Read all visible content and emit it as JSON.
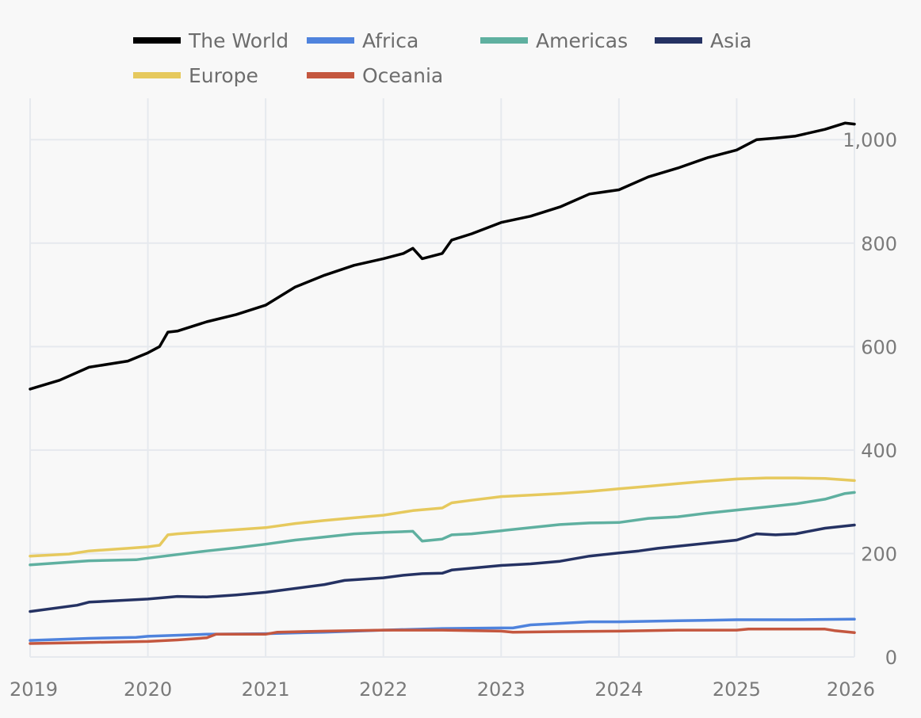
{
  "chart_data": {
    "type": "line",
    "title": "",
    "xlabel": "",
    "ylabel": "",
    "xlim": [
      2019,
      2026
    ],
    "ylim": [
      0,
      1080
    ],
    "y_axis_side": "right",
    "grid": true,
    "legend_position": "top",
    "x_ticks": [
      {
        "value": 2019,
        "label": "2019"
      },
      {
        "value": 2020,
        "label": "2020"
      },
      {
        "value": 2021,
        "label": "2021"
      },
      {
        "value": 2022,
        "label": "2022"
      },
      {
        "value": 2023,
        "label": "2023"
      },
      {
        "value": 2024,
        "label": "2024"
      },
      {
        "value": 2025,
        "label": "2025"
      },
      {
        "value": 2026,
        "label": "2026"
      }
    ],
    "y_ticks": [
      {
        "value": 0,
        "label": "0"
      },
      {
        "value": 200,
        "label": "200"
      },
      {
        "value": 400,
        "label": "400"
      },
      {
        "value": 600,
        "label": "600"
      },
      {
        "value": 800,
        "label": "800"
      },
      {
        "value": 1000,
        "label": "1,000"
      }
    ],
    "series": [
      {
        "name": "The World",
        "color": "#000000",
        "points": [
          [
            2019.0,
            518
          ],
          [
            2019.25,
            535
          ],
          [
            2019.5,
            560
          ],
          [
            2019.83,
            572
          ],
          [
            2020.0,
            588
          ],
          [
            2020.1,
            600
          ],
          [
            2020.17,
            628
          ],
          [
            2020.25,
            630
          ],
          [
            2020.5,
            648
          ],
          [
            2020.75,
            662
          ],
          [
            2021.0,
            680
          ],
          [
            2021.25,
            715
          ],
          [
            2021.5,
            738
          ],
          [
            2021.75,
            757
          ],
          [
            2022.0,
            770
          ],
          [
            2022.17,
            780
          ],
          [
            2022.25,
            790
          ],
          [
            2022.33,
            770
          ],
          [
            2022.5,
            780
          ],
          [
            2022.58,
            806
          ],
          [
            2022.75,
            818
          ],
          [
            2023.0,
            840
          ],
          [
            2023.25,
            852
          ],
          [
            2023.5,
            870
          ],
          [
            2023.75,
            895
          ],
          [
            2024.0,
            903
          ],
          [
            2024.25,
            928
          ],
          [
            2024.5,
            945
          ],
          [
            2024.75,
            965
          ],
          [
            2025.0,
            980
          ],
          [
            2025.17,
            1000
          ],
          [
            2025.33,
            1003
          ],
          [
            2025.5,
            1007
          ],
          [
            2025.75,
            1020
          ],
          [
            2025.92,
            1032
          ],
          [
            2026.0,
            1030
          ]
        ]
      },
      {
        "name": "Africa",
        "color": "#4f83dd",
        "points": [
          [
            2019.0,
            32
          ],
          [
            2019.5,
            36
          ],
          [
            2019.9,
            38
          ],
          [
            2020.0,
            40
          ],
          [
            2020.5,
            44
          ],
          [
            2021.0,
            45
          ],
          [
            2021.5,
            48
          ],
          [
            2022.0,
            52
          ],
          [
            2022.5,
            55
          ],
          [
            2023.0,
            56
          ],
          [
            2023.1,
            56
          ],
          [
            2023.25,
            62
          ],
          [
            2023.5,
            65
          ],
          [
            2023.75,
            68
          ],
          [
            2024.0,
            68
          ],
          [
            2024.5,
            70
          ],
          [
            2025.0,
            72
          ],
          [
            2025.5,
            72
          ],
          [
            2026.0,
            73
          ]
        ]
      },
      {
        "name": "Americas",
        "color": "#5fb0a0",
        "points": [
          [
            2019.0,
            178
          ],
          [
            2019.5,
            186
          ],
          [
            2019.9,
            188
          ],
          [
            2020.0,
            191
          ],
          [
            2020.5,
            205
          ],
          [
            2020.75,
            211
          ],
          [
            2021.0,
            218
          ],
          [
            2021.25,
            226
          ],
          [
            2021.5,
            232
          ],
          [
            2021.75,
            238
          ],
          [
            2022.0,
            241
          ],
          [
            2022.25,
            243
          ],
          [
            2022.33,
            224
          ],
          [
            2022.5,
            228
          ],
          [
            2022.58,
            236
          ],
          [
            2022.75,
            238
          ],
          [
            2023.0,
            244
          ],
          [
            2023.25,
            250
          ],
          [
            2023.5,
            256
          ],
          [
            2023.75,
            259
          ],
          [
            2024.0,
            260
          ],
          [
            2024.25,
            268
          ],
          [
            2024.5,
            271
          ],
          [
            2024.75,
            278
          ],
          [
            2025.0,
            284
          ],
          [
            2025.25,
            290
          ],
          [
            2025.5,
            296
          ],
          [
            2025.75,
            305
          ],
          [
            2025.92,
            316
          ],
          [
            2026.0,
            318
          ]
        ]
      },
      {
        "name": "Asia",
        "color": "#253263",
        "points": [
          [
            2019.0,
            88
          ],
          [
            2019.4,
            100
          ],
          [
            2019.5,
            106
          ],
          [
            2020.0,
            112
          ],
          [
            2020.25,
            117
          ],
          [
            2020.5,
            116
          ],
          [
            2020.75,
            120
          ],
          [
            2021.0,
            125
          ],
          [
            2021.5,
            140
          ],
          [
            2021.67,
            148
          ],
          [
            2022.0,
            153
          ],
          [
            2022.17,
            158
          ],
          [
            2022.33,
            161
          ],
          [
            2022.5,
            162
          ],
          [
            2022.58,
            168
          ],
          [
            2023.0,
            177
          ],
          [
            2023.25,
            180
          ],
          [
            2023.5,
            185
          ],
          [
            2023.75,
            195
          ],
          [
            2024.0,
            201
          ],
          [
            2024.17,
            205
          ],
          [
            2024.33,
            210
          ],
          [
            2024.5,
            214
          ],
          [
            2024.75,
            220
          ],
          [
            2025.0,
            226
          ],
          [
            2025.17,
            238
          ],
          [
            2025.33,
            236
          ],
          [
            2025.5,
            238
          ],
          [
            2025.75,
            249
          ],
          [
            2026.0,
            255
          ]
        ]
      },
      {
        "name": "Europe",
        "color": "#e6c95d",
        "points": [
          [
            2019.0,
            195
          ],
          [
            2019.33,
            199
          ],
          [
            2019.5,
            205
          ],
          [
            2019.83,
            210
          ],
          [
            2020.0,
            213
          ],
          [
            2020.1,
            216
          ],
          [
            2020.17,
            236
          ],
          [
            2020.25,
            238
          ],
          [
            2020.5,
            242
          ],
          [
            2020.75,
            246
          ],
          [
            2021.0,
            250
          ],
          [
            2021.25,
            258
          ],
          [
            2021.5,
            264
          ],
          [
            2021.75,
            269
          ],
          [
            2022.0,
            274
          ],
          [
            2022.25,
            283
          ],
          [
            2022.5,
            288
          ],
          [
            2022.58,
            298
          ],
          [
            2022.75,
            303
          ],
          [
            2023.0,
            310
          ],
          [
            2023.25,
            313
          ],
          [
            2023.5,
            316
          ],
          [
            2023.75,
            320
          ],
          [
            2024.0,
            325
          ],
          [
            2024.25,
            330
          ],
          [
            2024.5,
            335
          ],
          [
            2024.75,
            340
          ],
          [
            2025.0,
            344
          ],
          [
            2025.25,
            346
          ],
          [
            2025.5,
            346
          ],
          [
            2025.75,
            345
          ],
          [
            2026.0,
            341
          ]
        ]
      },
      {
        "name": "Oceania",
        "color": "#c4573f",
        "points": [
          [
            2019.0,
            26
          ],
          [
            2019.5,
            28
          ],
          [
            2020.0,
            30
          ],
          [
            2020.25,
            33
          ],
          [
            2020.5,
            37
          ],
          [
            2020.58,
            44
          ],
          [
            2021.0,
            44
          ],
          [
            2021.1,
            48
          ],
          [
            2021.5,
            50
          ],
          [
            2022.0,
            52
          ],
          [
            2022.5,
            52
          ],
          [
            2023.0,
            50
          ],
          [
            2023.1,
            48
          ],
          [
            2023.5,
            49
          ],
          [
            2024.0,
            50
          ],
          [
            2024.5,
            52
          ],
          [
            2025.0,
            52
          ],
          [
            2025.1,
            54
          ],
          [
            2025.75,
            54
          ],
          [
            2025.83,
            51
          ],
          [
            2026.0,
            47
          ]
        ]
      }
    ]
  }
}
